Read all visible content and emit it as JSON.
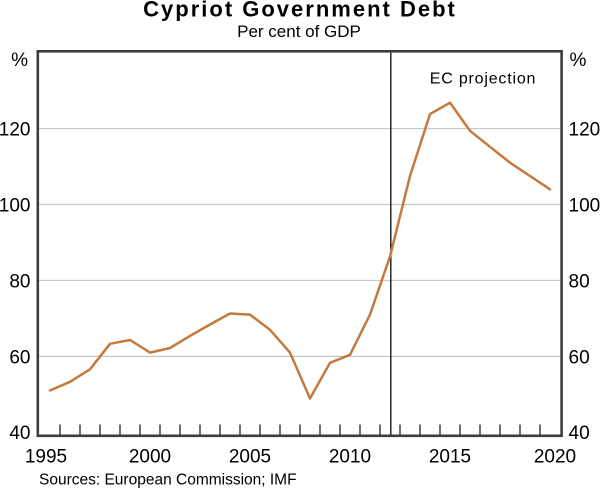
{
  "chart_data": {
    "type": "line",
    "title": "Cypriot Government Debt",
    "subtitle": "Per cent of GDP",
    "unit_label": "%",
    "annotation": "EC projection",
    "source_note": "Sources: European Commission; IMF",
    "x": [
      1995,
      1996,
      1997,
      1998,
      1999,
      2000,
      2001,
      2002,
      2003,
      2004,
      2005,
      2006,
      2007,
      2008,
      2009,
      2010,
      2011,
      2012,
      2013,
      2014,
      2015,
      2016,
      2017,
      2018,
      2019,
      2020
    ],
    "series": [
      {
        "name": "Cypriot government debt, per cent of GDP",
        "values": [
          51,
          53.3,
          56.6,
          63.3,
          64.3,
          61,
          62.2,
          65.4,
          68.4,
          71.3,
          71,
          67,
          61,
          48.9,
          58.3,
          60.4,
          71,
          86.3,
          107.5,
          123.8,
          126.8,
          119.4,
          115.2,
          111,
          107.5,
          104
        ]
      }
    ],
    "ylim": [
      40,
      140
    ],
    "yticks": [
      40,
      60,
      80,
      100,
      120
    ],
    "x_axis_labels": [
      1995,
      2000,
      2005,
      2010,
      2015,
      2020
    ],
    "projection_divider_year": 2012,
    "grid": "horizontal",
    "legend": "none",
    "line_color": "#C4793F"
  }
}
